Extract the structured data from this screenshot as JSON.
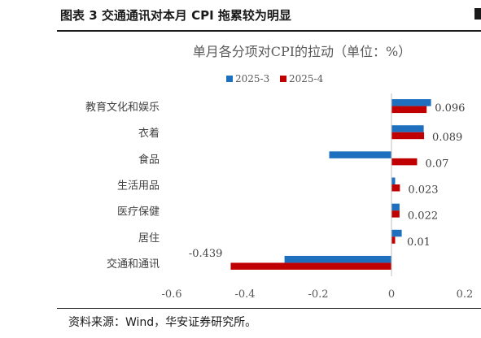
{
  "figure": {
    "title": "图表 3 交通通讯对本月 CPI 拖累较为明显",
    "source": "资料来源：Wind，华安证券研究所。"
  },
  "chart_data": {
    "type": "bar",
    "orientation": "horizontal",
    "title": "单月各分项对CPI的拉动（单位：%）",
    "categories": [
      "教育文化和娱乐",
      "衣着",
      "食品",
      "生活用品",
      "医疗保健",
      "居住",
      "交通和通讯"
    ],
    "series": [
      {
        "name": "2025-3",
        "color": "#1f6fbf",
        "values": [
          0.108,
          0.088,
          -0.17,
          0.01,
          0.022,
          0.028,
          -0.292
        ]
      },
      {
        "name": "2025-4",
        "color": "#c00000",
        "values": [
          0.096,
          0.089,
          0.07,
          0.023,
          0.022,
          0.01,
          -0.439
        ]
      }
    ],
    "data_labels": [
      {
        "series": "2025-4",
        "category": "教育文化和娱乐",
        "text": "0.096"
      },
      {
        "series": "2025-4",
        "category": "衣着",
        "text": "0.089"
      },
      {
        "series": "2025-4",
        "category": "食品",
        "text": "0.07"
      },
      {
        "series": "2025-4",
        "category": "生活用品",
        "text": "0.023"
      },
      {
        "series": "2025-4",
        "category": "医疗保健",
        "text": "0.022"
      },
      {
        "series": "2025-4",
        "category": "居住",
        "text": "0.01"
      },
      {
        "series": "2025-4",
        "category": "交通和通讯",
        "text": "-0.439"
      }
    ],
    "x_ticks": [
      "-0.6",
      "-0.4",
      "-0.2",
      "0",
      "0.2"
    ],
    "xlim": [
      -0.6,
      0.2
    ],
    "legend": "top-center",
    "grid": false
  }
}
